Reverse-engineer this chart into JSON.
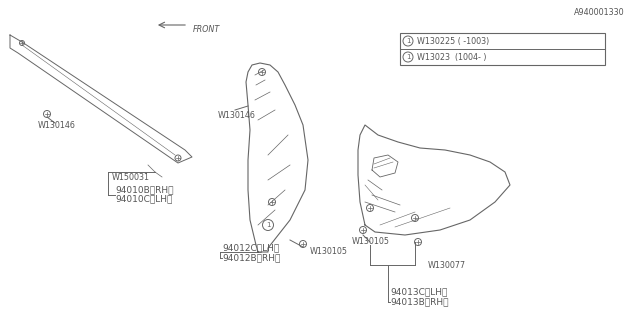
{
  "bg_color": "#ffffff",
  "line_color": "#666666",
  "text_color": "#555555",
  "title_bottom": "A940001330",
  "labels": {
    "part1_line1": "94010B〈RH〉",
    "part1_line2": "94010C〈LH〉",
    "part1_w1": "W150031",
    "part1_w2": "W130146",
    "part2_line1": "94012B〈RH〉",
    "part2_line2": "94012C〈LH〉",
    "part2_w1": "W130105",
    "part2_w2": "W130146",
    "part3_line1": "94013B〈RH〉",
    "part3_line2": "94013C〈LH〉",
    "part3_w1": "W130077",
    "front_label": "FRONT",
    "legend1": "W130225 ( -1003)",
    "legend2": "W13023  (1004- )"
  },
  "font_size": 6.5,
  "small_font_size": 5.8
}
